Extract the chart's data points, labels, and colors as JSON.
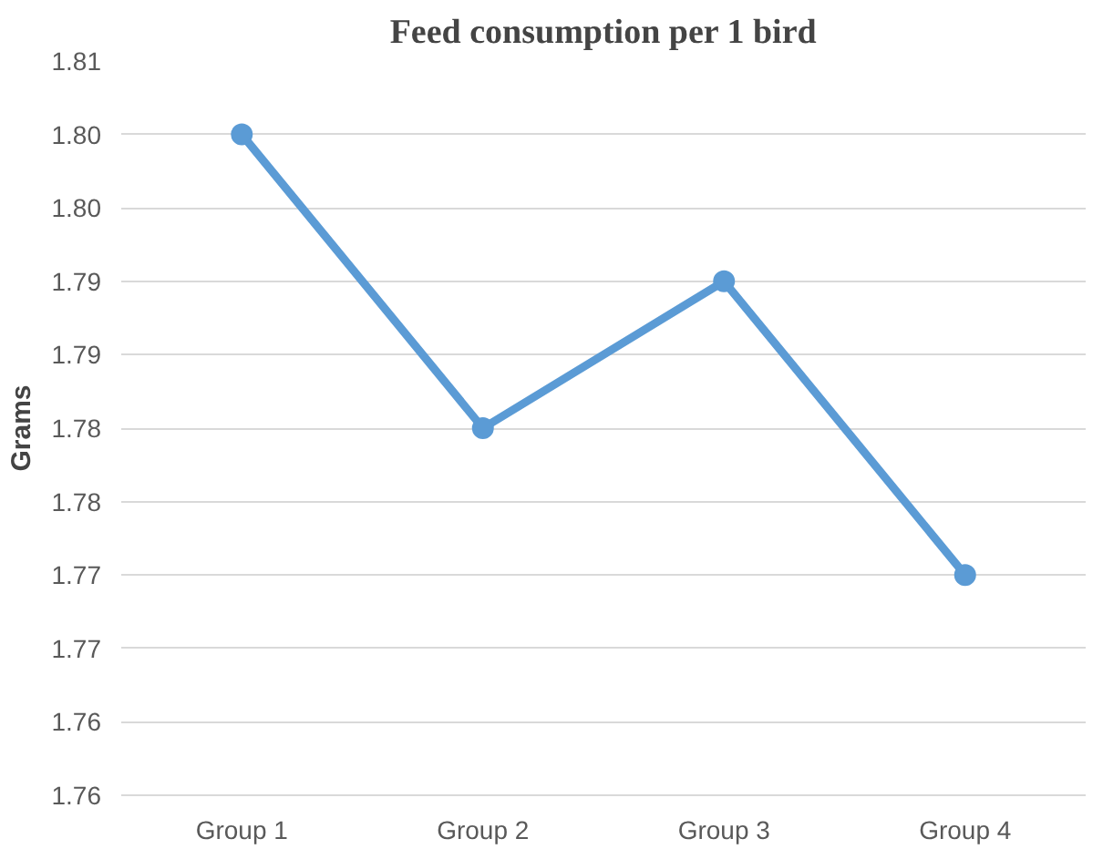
{
  "chart_data": {
    "type": "line",
    "title": "Feed consumption per 1 bird",
    "ylabel": "Grams",
    "categories": [
      "Group 1",
      "Group 2",
      "Group 3",
      "Group 4"
    ],
    "series": [
      {
        "color": "#5b9bd5",
        "values": [
          1.805,
          1.785,
          1.795,
          1.775
        ]
      }
    ],
    "ylim": [
      1.76,
      1.81
    ],
    "yticks": [
      {
        "value": 1.76,
        "label": "1.76"
      },
      {
        "value": 1.765,
        "label": "1.76"
      },
      {
        "value": 1.77,
        "label": "1.77"
      },
      {
        "value": 1.775,
        "label": "1.77"
      },
      {
        "value": 1.78,
        "label": "1.78"
      },
      {
        "value": 1.785,
        "label": "1.78"
      },
      {
        "value": 1.79,
        "label": "1.79"
      },
      {
        "value": 1.795,
        "label": "1.79"
      },
      {
        "value": 1.8,
        "label": "1.80"
      },
      {
        "value": 1.805,
        "label": "1.80"
      },
      {
        "value": 1.81,
        "label": "1.81"
      }
    ],
    "grid": "y",
    "marker": "circle",
    "line_style": "solid"
  }
}
